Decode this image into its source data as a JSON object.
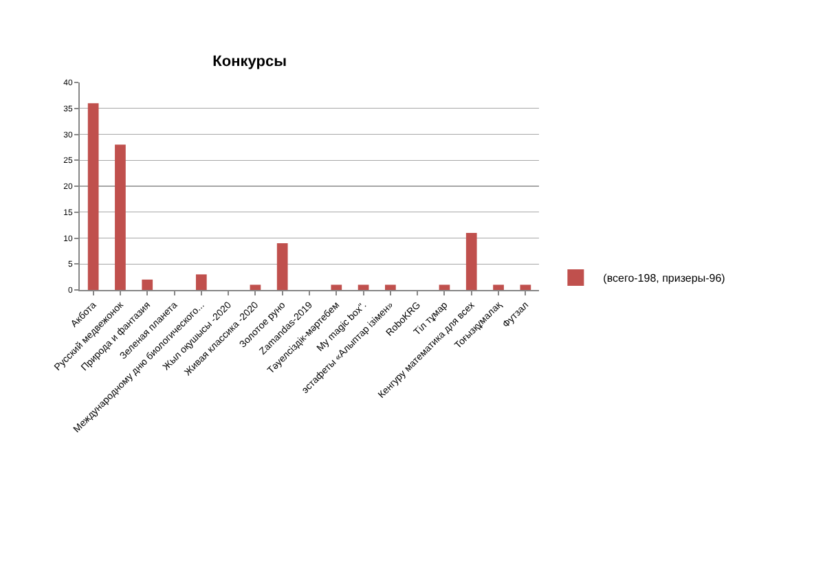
{
  "chart_data": {
    "type": "bar",
    "title": "Конкурсы",
    "categories": [
      "Акбота",
      "Русский медвежонок",
      "Природа и фантазия",
      "Зеленая планета",
      "Международному дню биологического...",
      "Жыл оқушысы -2020",
      "Живая классика -2020",
      "Золотое руно",
      "Zamandas-2019",
      "Тәуелсіздік-мәртебем",
      "My magic box\".",
      "эстафеты «Алыптар ізімен»",
      "RoboKRG",
      "Тіл тұмар",
      "Кенгуру математика для всех",
      "Тоғызқұмалақ",
      "Футзал"
    ],
    "series": [
      {
        "name": "(всего-198, призеры-96)",
        "color": "#c0504d",
        "values": [
          36,
          28,
          2,
          0,
          3,
          0,
          1,
          9,
          0,
          1,
          1,
          1,
          0,
          1,
          11,
          1,
          1
        ]
      }
    ],
    "ylim": [
      0,
      40
    ],
    "yticks": [
      0,
      5,
      10,
      15,
      20,
      25,
      30,
      35,
      40
    ],
    "grid": "y",
    "legend": "right"
  }
}
